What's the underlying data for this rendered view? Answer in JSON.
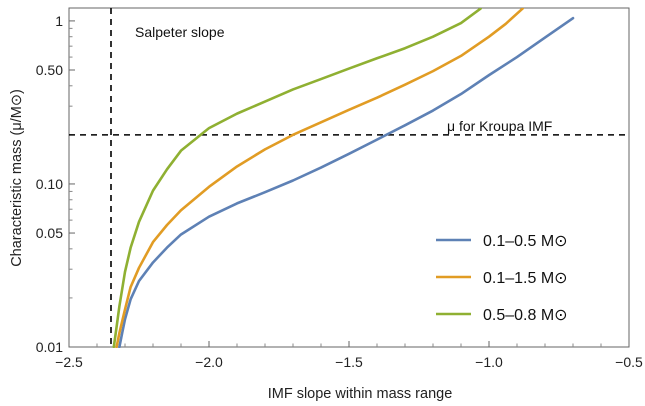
{
  "chart_data": {
    "type": "line",
    "title": "",
    "xlabel": "IMF slope within mass range",
    "ylabel": "Characteristic mass (μ/M⊙)",
    "xlim": [
      -2.5,
      -0.5
    ],
    "ylim": [
      0.01,
      1.2
    ],
    "y_scale": "log",
    "grid": false,
    "legend_position": "bottom-right",
    "x_ticks": [
      {
        "value": -2.5,
        "label": "−2.5"
      },
      {
        "value": -2.0,
        "label": "−2.0"
      },
      {
        "value": -1.5,
        "label": "−1.5"
      },
      {
        "value": -1.0,
        "label": "−1.0"
      },
      {
        "value": -0.5,
        "label": "−0.5"
      }
    ],
    "y_ticks": [
      {
        "value": 0.01,
        "label": "0.01"
      },
      {
        "value": 0.05,
        "label": "0.05"
      },
      {
        "value": 0.1,
        "label": "0.10"
      },
      {
        "value": 0.5,
        "label": "0.50"
      },
      {
        "value": 1.0,
        "label": "1"
      }
    ],
    "reference_lines": [
      {
        "orientation": "vertical",
        "value": -2.35,
        "label": "Salpeter slope",
        "style": "dashed",
        "color": "#000000"
      },
      {
        "orientation": "horizontal",
        "value": 0.2,
        "label": "μ for Kroupa IMF",
        "style": "dashed",
        "color": "#000000"
      }
    ],
    "series": [
      {
        "name": "0.1–0.5 M⊙",
        "color": "#5e81b5",
        "x": [
          -2.32,
          -2.31,
          -2.3,
          -2.28,
          -2.25,
          -2.2,
          -2.15,
          -2.1,
          -2.0,
          -1.9,
          -1.8,
          -1.7,
          -1.6,
          -1.5,
          -1.4,
          -1.3,
          -1.2,
          -1.1,
          -1.0,
          -0.9,
          -0.8,
          -0.7
        ],
        "y": [
          0.01,
          0.0122,
          0.0148,
          0.0196,
          0.0254,
          0.033,
          0.0407,
          0.049,
          0.063,
          0.076,
          0.089,
          0.105,
          0.126,
          0.153,
          0.187,
          0.229,
          0.282,
          0.356,
          0.465,
          0.6,
          0.79,
          1.04
        ]
      },
      {
        "name": "0.1–1.5 M⊙",
        "color": "#e19c24",
        "x": [
          -2.33,
          -2.32,
          -2.3,
          -2.28,
          -2.25,
          -2.2,
          -2.15,
          -2.1,
          -2.0,
          -1.9,
          -1.8,
          -1.7,
          -1.6,
          -1.5,
          -1.4,
          -1.3,
          -1.2,
          -1.1,
          -1.0,
          -0.94,
          -0.88
        ],
        "y": [
          0.01,
          0.0122,
          0.017,
          0.0233,
          0.0306,
          0.044,
          0.056,
          0.069,
          0.096,
          0.128,
          0.163,
          0.2,
          0.239,
          0.285,
          0.338,
          0.406,
          0.492,
          0.61,
          0.8,
          0.96,
          1.19
        ]
      },
      {
        "name": "0.5–0.8 M⊙",
        "color": "#8fb032",
        "x": [
          -2.34,
          -2.33,
          -2.32,
          -2.3,
          -2.28,
          -2.25,
          -2.2,
          -2.15,
          -2.1,
          -2.0,
          -1.9,
          -1.8,
          -1.7,
          -1.6,
          -1.5,
          -1.4,
          -1.3,
          -1.2,
          -1.1,
          -1.03
        ],
        "y": [
          0.01,
          0.0133,
          0.0178,
          0.0289,
          0.0406,
          0.0586,
          0.091,
          0.123,
          0.16,
          0.22,
          0.27,
          0.32,
          0.38,
          0.44,
          0.51,
          0.59,
          0.68,
          0.8,
          0.97,
          1.19
        ]
      }
    ]
  }
}
